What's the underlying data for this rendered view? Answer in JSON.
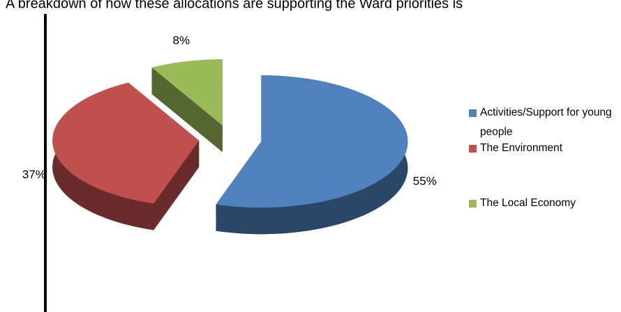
{
  "chart_data": {
    "type": "pie",
    "title": "A breakdown of how these allocations are supporting the Ward priorities is",
    "categories": [
      "Activities/Support for young people",
      "The Environment",
      "The Local Economy"
    ],
    "values": [
      55,
      37,
      8
    ],
    "value_labels": [
      "55%",
      "37%",
      "8%"
    ],
    "colors": [
      "#4f81bd",
      "#c0504d",
      "#9bbb59"
    ],
    "legend": "right"
  }
}
